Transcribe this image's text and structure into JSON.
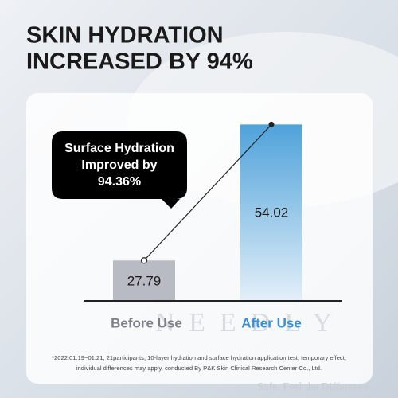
{
  "chart_data": {
    "type": "bar",
    "title": [
      "SKIN HYDRATION",
      "INCREASED BY 94%"
    ],
    "categories": [
      "Before Use",
      "After Use"
    ],
    "values": [
      27.79,
      54.02
    ],
    "colors": [
      "#b9bbc4",
      "#4fa2da"
    ],
    "label_colors": [
      "#7d8088",
      "#3b8fd2"
    ],
    "ylim": [
      20,
      55
    ],
    "connector": true,
    "annotation": [
      "Surface Hydration",
      "Improved by",
      "94.36%"
    ],
    "watermark": "NEEDLY",
    "tagline": "Safe. Feel the Difference.",
    "footnote": [
      "*2022.01.19~01.21, 21participants, 10-layer hydration and surface hydration application test, temporary effect,",
      "individual differences may apply, conducted By P&K Skin Clinical Research Center Co., Ltd."
    ]
  }
}
